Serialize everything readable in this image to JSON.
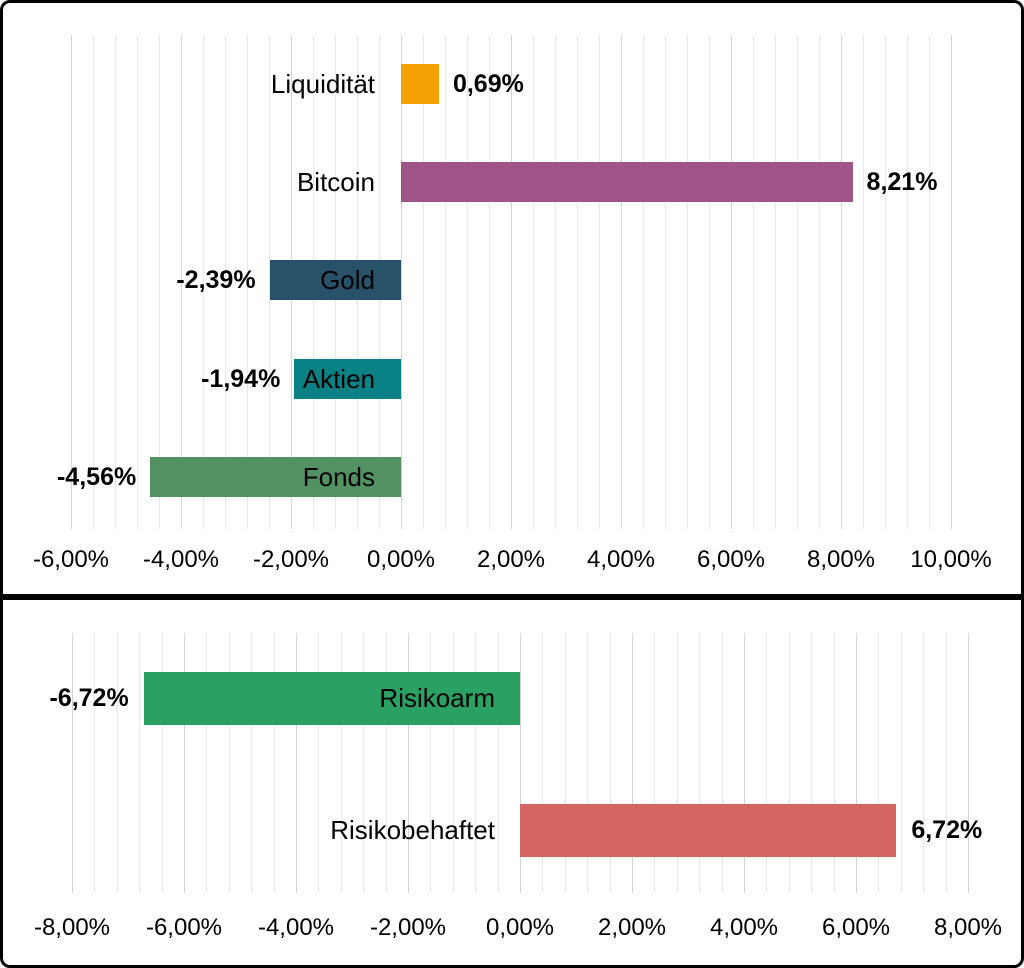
{
  "colors": {
    "background": "#FFFFFF",
    "frame": "#000000",
    "grid_minor": "#E8E8E8",
    "grid_major": "#D4D4D4",
    "text": "#000000"
  },
  "chart_data": [
    {
      "name": "asset-class-performance",
      "type": "bar",
      "orientation": "horizontal",
      "title": "",
      "xlabel": "",
      "ylabel": "",
      "xlim": [
        -6,
        10
      ],
      "major_step": 2,
      "minor_step": 0.4,
      "grid": "on",
      "categories": [
        "Liquidität",
        "Bitcoin",
        "Gold",
        "Aktien",
        "Fonds"
      ],
      "values": [
        0.69,
        8.21,
        -2.39,
        -1.94,
        -4.56
      ],
      "bars": [
        {
          "label": "Liquidität",
          "value": 0.69,
          "value_label": "0,69%",
          "color": "#F5A104"
        },
        {
          "label": "Bitcoin",
          "value": 8.21,
          "value_label": "8,21%",
          "color": "#A05589"
        },
        {
          "label": "Gold",
          "value": -2.39,
          "value_label": "-2,39%",
          "color": "#275269"
        },
        {
          "label": "Aktien",
          "value": -1.94,
          "value_label": "-1,94%",
          "color": "#0A8184"
        },
        {
          "label": "Fonds",
          "value": -4.56,
          "value_label": "-4,56%",
          "color": "#529162"
        }
      ],
      "axis_ticks": [
        {
          "value": -6,
          "text": "-6,00%"
        },
        {
          "value": -4,
          "text": "-4,00%"
        },
        {
          "value": -2,
          "text": "-2,00%"
        },
        {
          "value": 0,
          "text": "0,00%"
        },
        {
          "value": 2,
          "text": "2,00%"
        },
        {
          "value": 4,
          "text": "4,00%"
        },
        {
          "value": 6,
          "text": "6,00%"
        },
        {
          "value": 8,
          "text": "8,00%"
        },
        {
          "value": 10,
          "text": "10,00%"
        }
      ]
    },
    {
      "name": "risk-split-performance",
      "type": "bar",
      "orientation": "horizontal",
      "title": "",
      "xlabel": "",
      "ylabel": "",
      "xlim": [
        -8,
        8
      ],
      "major_step": 2,
      "minor_step": 0.4,
      "grid": "on",
      "categories": [
        "Risikoarm",
        "Risikobehaftet"
      ],
      "values": [
        -6.72,
        6.72
      ],
      "bars": [
        {
          "label": "Risikoarm",
          "value": -6.72,
          "value_label": "-6,72%",
          "color": "#2AA163"
        },
        {
          "label": "Risikobehaftet",
          "value": 6.72,
          "value_label": "6,72%",
          "color": "#D56560"
        }
      ],
      "axis_ticks": [
        {
          "value": -8,
          "text": "-8,00%"
        },
        {
          "value": -6,
          "text": "-6,00%"
        },
        {
          "value": -4,
          "text": "-4,00%"
        },
        {
          "value": -2,
          "text": "-2,00%"
        },
        {
          "value": 0,
          "text": "0,00%"
        },
        {
          "value": 2,
          "text": "2,00%"
        },
        {
          "value": 4,
          "text": "4,00%"
        },
        {
          "value": 6,
          "text": "6,00%"
        },
        {
          "value": 8,
          "text": "8,00%"
        }
      ]
    }
  ]
}
